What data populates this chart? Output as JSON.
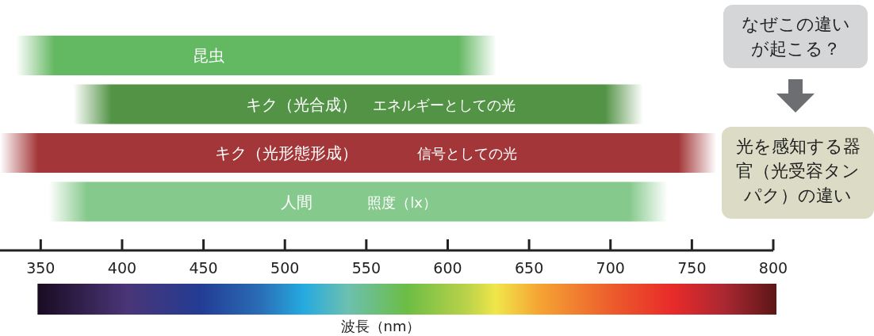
{
  "chart_data": {
    "type": "bar",
    "orientation": "horizontal",
    "categories": [
      "昆虫",
      "キク（光合成）",
      "キク（光形態形成）",
      "人間"
    ],
    "base": [
      335,
      370,
      325,
      355
    ],
    "values": [
      295,
      350,
      440,
      380
    ],
    "colors": [
      "#63b862",
      "#539346",
      "#a33638",
      "#86c98c"
    ],
    "xlim": [
      325,
      800
    ],
    "xticks": [
      350,
      400,
      450,
      500,
      550,
      600,
      650,
      700,
      750,
      800
    ],
    "xlabel": "波長（nm）",
    "annotations": [
      {
        "text": "エネルギーとしての光",
        "x": 598,
        "y": "キク（光合成）"
      },
      {
        "text": "信号としての光",
        "x": 612,
        "y": "キク（光形態形成）"
      },
      {
        "text": "照度（lx）",
        "x": 572,
        "y": "人間"
      },
      "なぜこの違いが起こる？",
      "光を感知する器官（光受容タンパク）の違い"
    ]
  }
}
